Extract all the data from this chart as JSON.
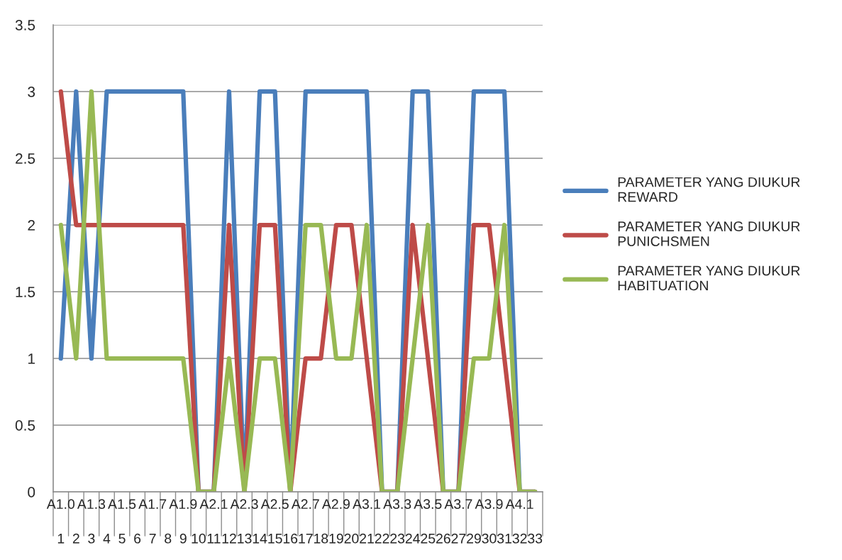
{
  "chart_data": {
    "type": "line",
    "categories": [
      "1",
      "2",
      "3",
      "4",
      "5",
      "6",
      "7",
      "8",
      "9",
      "10",
      "11",
      "12",
      "13",
      "14",
      "15",
      "16",
      "17",
      "18",
      "19",
      "20",
      "21",
      "22",
      "23",
      "24",
      "25",
      "26",
      "27",
      "29",
      "30",
      "31",
      "32",
      "33"
    ],
    "annotations": [
      "A1.0",
      "A1.3",
      "A1.5",
      "A1.7",
      "A1.9",
      "A2.1",
      "A2.3",
      "A2.5",
      "A2.7",
      "A2.9",
      "A3.1",
      "A3.3",
      "A3.5",
      "A3.7",
      "A3.9",
      "A4.1"
    ],
    "series": [
      {
        "name": "PARAMETER YANG DIUKUR\nREWARD",
        "color": "#4a7ebb",
        "values": [
          1,
          3,
          1,
          3,
          3,
          3,
          3,
          3,
          3,
          0,
          0,
          3,
          0,
          3,
          3,
          0,
          3,
          3,
          3,
          3,
          3,
          0,
          0,
          3,
          3,
          0,
          0,
          3,
          3,
          3,
          0,
          0
        ]
      },
      {
        "name": "PARAMETER YANG DIUKUR\nPUNICHSMEN",
        "color": "#be4b48",
        "values": [
          3,
          2,
          2,
          2,
          2,
          2,
          2,
          2,
          2,
          0,
          0,
          2,
          0,
          2,
          2,
          0,
          1,
          1,
          2,
          2,
          1,
          0,
          0,
          2,
          1,
          0,
          0,
          2,
          2,
          1,
          0,
          0
        ]
      },
      {
        "name": "PARAMETER YANG DIUKUR\nHABITUATION",
        "color": "#98b954",
        "values": [
          2,
          1,
          3,
          1,
          1,
          1,
          1,
          1,
          1,
          0,
          0,
          1,
          0,
          1,
          1,
          0,
          2,
          2,
          1,
          1,
          2,
          0,
          0,
          1,
          2,
          0,
          0,
          1,
          1,
          2,
          0,
          0
        ]
      }
    ],
    "ylim": [
      0,
      3.5
    ],
    "yticks": [
      0,
      0.5,
      1,
      1.5,
      2,
      2.5,
      3,
      3.5
    ],
    "grid": "y",
    "legend": "right",
    "marker": "none",
    "line_style": "solid"
  }
}
